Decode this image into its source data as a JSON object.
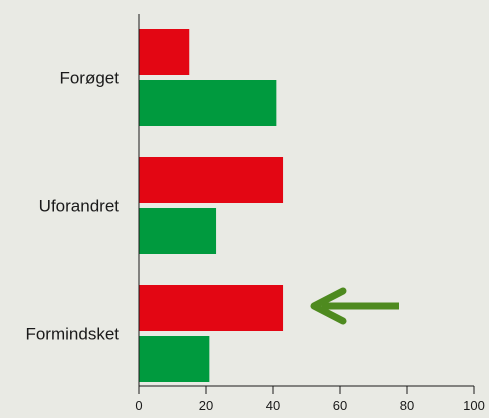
{
  "chart_data": {
    "type": "bar",
    "orientation": "horizontal",
    "categories": [
      "Forøget",
      "Uforandret",
      "Formindsket"
    ],
    "series": [
      {
        "values": [
          15,
          43,
          43
        ],
        "color": "#e30613"
      },
      {
        "values": [
          41,
          23,
          21
        ],
        "color": "#009a3e"
      }
    ],
    "xlim": [
      0,
      100
    ],
    "x_ticks": [
      0,
      20,
      40,
      60,
      80,
      100
    ],
    "grid": false,
    "legend": "none",
    "annotation": {
      "type": "arrow",
      "target_category": "Formindsket",
      "points": "left",
      "color": "#4e8a1f"
    }
  }
}
